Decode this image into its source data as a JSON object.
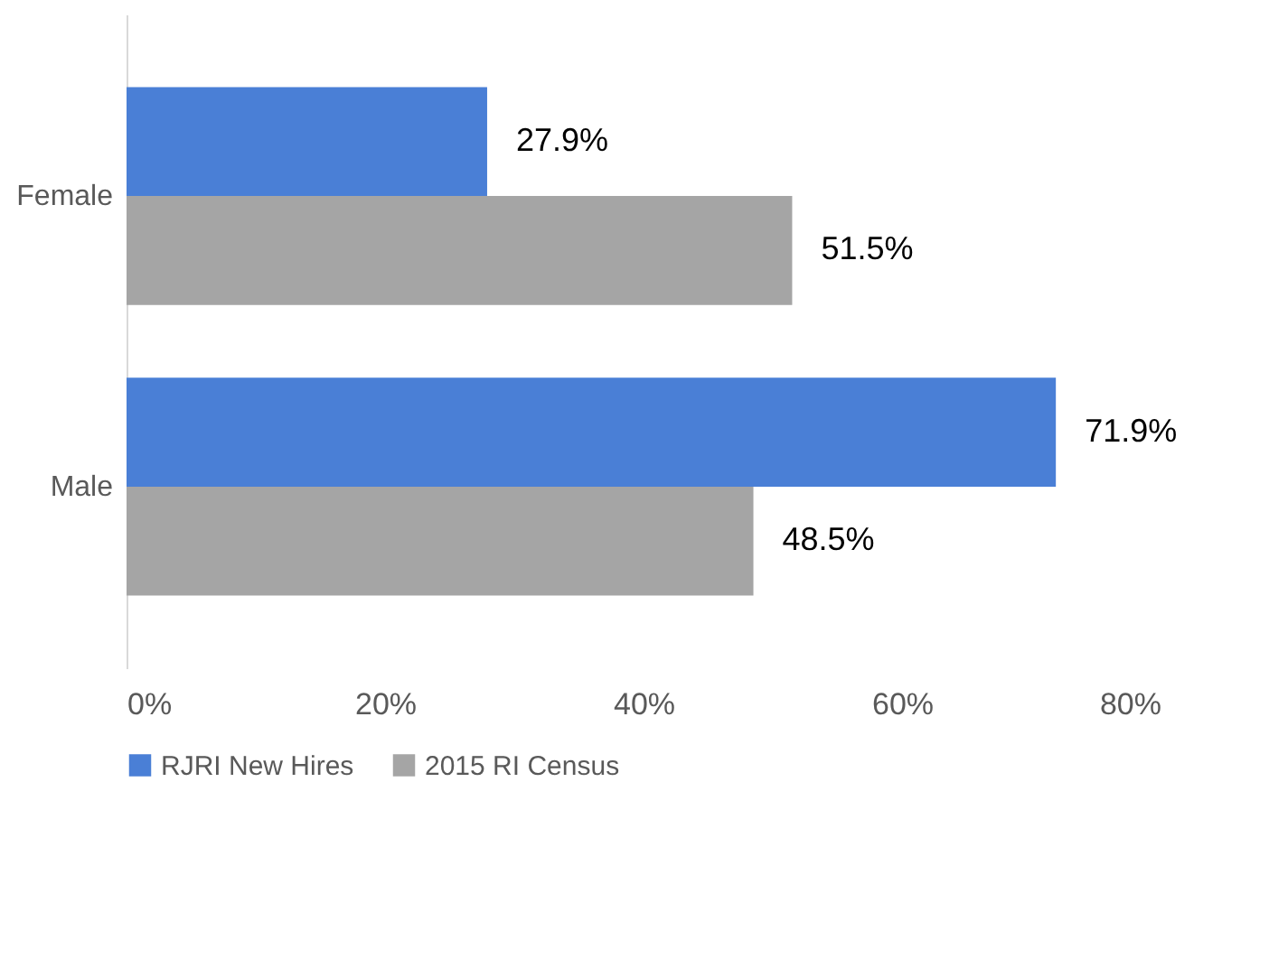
{
  "chart_data": {
    "type": "bar",
    "orientation": "horizontal",
    "categories": [
      "Female",
      "Male"
    ],
    "series": [
      {
        "name": "RJRI New Hires",
        "color": "#4a7fd6",
        "values": [
          27.9,
          71.9
        ],
        "value_labels": [
          "27.9%",
          "71.9%"
        ]
      },
      {
        "name": "2015 RI Census",
        "color": "#a5a5a5",
        "values": [
          51.5,
          48.5
        ],
        "value_labels": [
          "51.5%",
          "48.5%"
        ]
      }
    ],
    "xlim": [
      0,
      80
    ],
    "xticks": [
      {
        "value": 0,
        "label": "0%"
      },
      {
        "value": 20,
        "label": "20%"
      },
      {
        "value": 40,
        "label": "40%"
      },
      {
        "value": 60,
        "label": "60%"
      },
      {
        "value": 80,
        "label": "80%"
      }
    ],
    "legend": "bottom",
    "grid": false
  }
}
